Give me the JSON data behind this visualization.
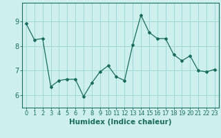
{
  "x": [
    0,
    1,
    2,
    3,
    4,
    5,
    6,
    7,
    8,
    9,
    10,
    11,
    12,
    13,
    14,
    15,
    16,
    17,
    18,
    19,
    20,
    21,
    22,
    23
  ],
  "y": [
    8.9,
    8.25,
    8.3,
    6.35,
    6.6,
    6.65,
    6.65,
    5.95,
    6.5,
    6.95,
    7.2,
    6.75,
    6.6,
    8.05,
    9.25,
    8.55,
    8.3,
    8.3,
    7.65,
    7.4,
    7.6,
    7.0,
    6.95,
    7.05
  ],
  "line_color": "#1a6b5e",
  "marker": "D",
  "marker_size": 2,
  "bg_color": "#cdf0ee",
  "grid_color": "#a0d8d5",
  "xlabel": "Humidex (Indice chaleur)",
  "ylim": [
    5.5,
    9.75
  ],
  "xlim": [
    -0.5,
    23.5
  ],
  "yticks": [
    6,
    7,
    8,
    9
  ],
  "xticks": [
    0,
    1,
    2,
    3,
    4,
    5,
    6,
    7,
    8,
    9,
    10,
    11,
    12,
    13,
    14,
    15,
    16,
    17,
    18,
    19,
    20,
    21,
    22,
    23
  ],
  "xtick_labels": [
    "0",
    "1",
    "2",
    "3",
    "4",
    "5",
    "6",
    "7",
    "8",
    "9",
    "10",
    "11",
    "12",
    "13",
    "14",
    "15",
    "16",
    "17",
    "18",
    "19",
    "20",
    "21",
    "22",
    "23"
  ],
  "tick_fontsize": 6,
  "xlabel_fontsize": 7.5,
  "label_color": "#1a6b5e",
  "spine_color": "#1a6b5e",
  "linewidth": 0.9
}
